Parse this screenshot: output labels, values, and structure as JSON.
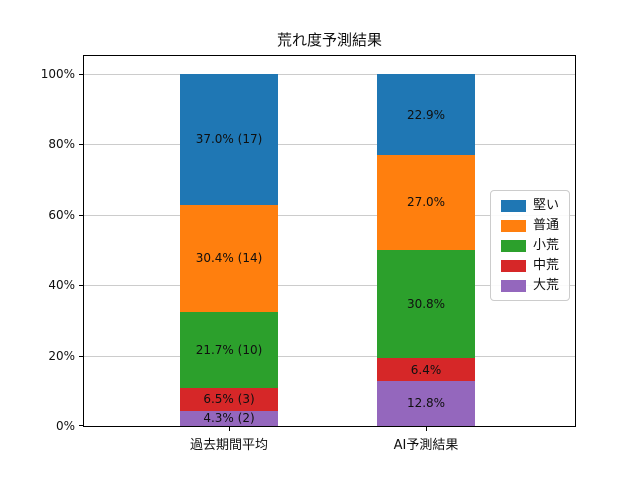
{
  "figure": {
    "background": "#ffffff"
  },
  "chart_data": {
    "type": "bar",
    "stacked": true,
    "title": "荒れ度予測結果",
    "categories": [
      "過去期間平均",
      "AI予測結果"
    ],
    "series": [
      {
        "name": "大荒",
        "color": "#9467bd",
        "values": [
          4.3,
          12.8
        ],
        "labels": [
          "4.3% (2)",
          "12.8%"
        ]
      },
      {
        "name": "中荒",
        "color": "#d62728",
        "values": [
          6.5,
          6.4
        ],
        "labels": [
          "6.5% (3)",
          "6.4%"
        ]
      },
      {
        "name": "小荒",
        "color": "#2ca02c",
        "values": [
          21.7,
          30.8
        ],
        "labels": [
          "21.7% (10)",
          "30.8%"
        ]
      },
      {
        "name": "普通",
        "color": "#ff7f0e",
        "values": [
          30.4,
          27.0
        ],
        "labels": [
          "30.4% (14)",
          "27.0%"
        ]
      },
      {
        "name": "堅い",
        "color": "#1f77b4",
        "values": [
          37.0,
          22.9
        ],
        "labels": [
          "37.0% (17)",
          "22.9%"
        ]
      }
    ],
    "legend": {
      "entries": [
        "堅い",
        "普通",
        "小荒",
        "中荒",
        "大荒"
      ],
      "position": "center right"
    },
    "xlabel": "",
    "ylabel": "",
    "y_ticks": [
      "0%",
      "20%",
      "40%",
      "60%",
      "80%",
      "100%"
    ],
    "ylim": [
      0,
      105.7
    ],
    "grid": true,
    "grid_color": "#cccccc",
    "text_color": "#101010"
  }
}
